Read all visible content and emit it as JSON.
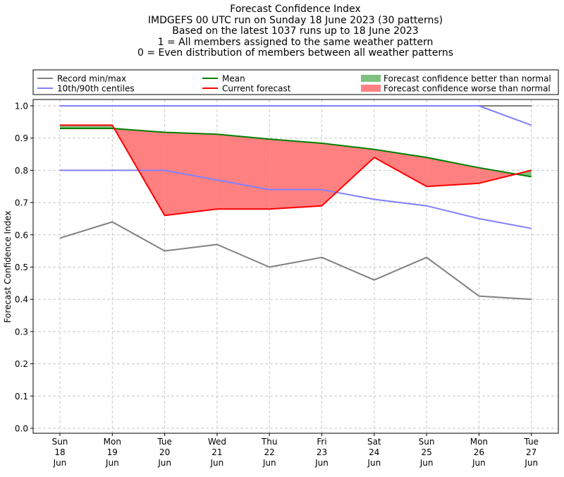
{
  "chart_data": {
    "type": "line",
    "title_lines": [
      "Forecast Confidence Index",
      "IMDGEFS 00 UTC run on Sunday 18 June 2023 (30 patterns)",
      "Based on the latest 1037 runs up to 18 June 2023",
      "1 = All members assigned to the same weather pattern",
      "0 = Even distribution of members between all weather patterns"
    ],
    "ylabel": "Forecast Confidence Index",
    "ylim": [
      0,
      1
    ],
    "yticks": [
      "0.0",
      "0.1",
      "0.2",
      "0.3",
      "0.4",
      "0.5",
      "0.6",
      "0.7",
      "0.8",
      "0.9",
      "1.0"
    ],
    "categories": [
      [
        "Sun",
        "18",
        "Jun"
      ],
      [
        "Mon",
        "19",
        "Jun"
      ],
      [
        "Tue",
        "20",
        "Jun"
      ],
      [
        "Wed",
        "21",
        "Jun"
      ],
      [
        "Thu",
        "22",
        "Jun"
      ],
      [
        "Fri",
        "23",
        "Jun"
      ],
      [
        "Sat",
        "24",
        "Jun"
      ],
      [
        "Sun",
        "25",
        "Jun"
      ],
      [
        "Mon",
        "26",
        "Jun"
      ],
      [
        "Tue",
        "27",
        "Jun"
      ]
    ],
    "grid": true,
    "legend_position": "top",
    "series": [
      {
        "name": "Record min/max",
        "color": "#808080",
        "values": [
          1.0,
          1.0,
          1.0,
          1.0,
          1.0,
          1.0,
          1.0,
          1.0,
          1.0,
          1.0
        ]
      },
      {
        "color": "#808080",
        "values": [
          0.59,
          0.64,
          0.55,
          0.57,
          0.5,
          0.53,
          0.46,
          0.53,
          0.41,
          0.4
        ]
      },
      {
        "name": "10th/90th centiles",
        "color": "#8080ff",
        "values": [
          1.0,
          1.0,
          1.0,
          1.0,
          1.0,
          1.0,
          1.0,
          1.0,
          1.0,
          0.94
        ]
      },
      {
        "color": "#8080ff",
        "values": [
          0.8,
          0.8,
          0.8,
          0.77,
          0.74,
          0.74,
          0.71,
          0.69,
          0.65,
          0.62
        ]
      },
      {
        "name": "Mean",
        "color": "#008000",
        "values": [
          0.93,
          0.93,
          0.918,
          0.912,
          0.897,
          0.884,
          0.865,
          0.84,
          0.808,
          0.78
        ]
      },
      {
        "name": "Current forecast",
        "color": "#ff0000",
        "values": [
          0.94,
          0.94,
          0.66,
          0.68,
          0.68,
          0.69,
          0.84,
          0.75,
          0.76,
          0.8
        ]
      }
    ],
    "fill_legend": [
      {
        "name": "Forecast confidence better than normal",
        "color": "#80c080"
      },
      {
        "name": "Forecast confidence worse than normal",
        "color": "#ff8080"
      }
    ]
  }
}
